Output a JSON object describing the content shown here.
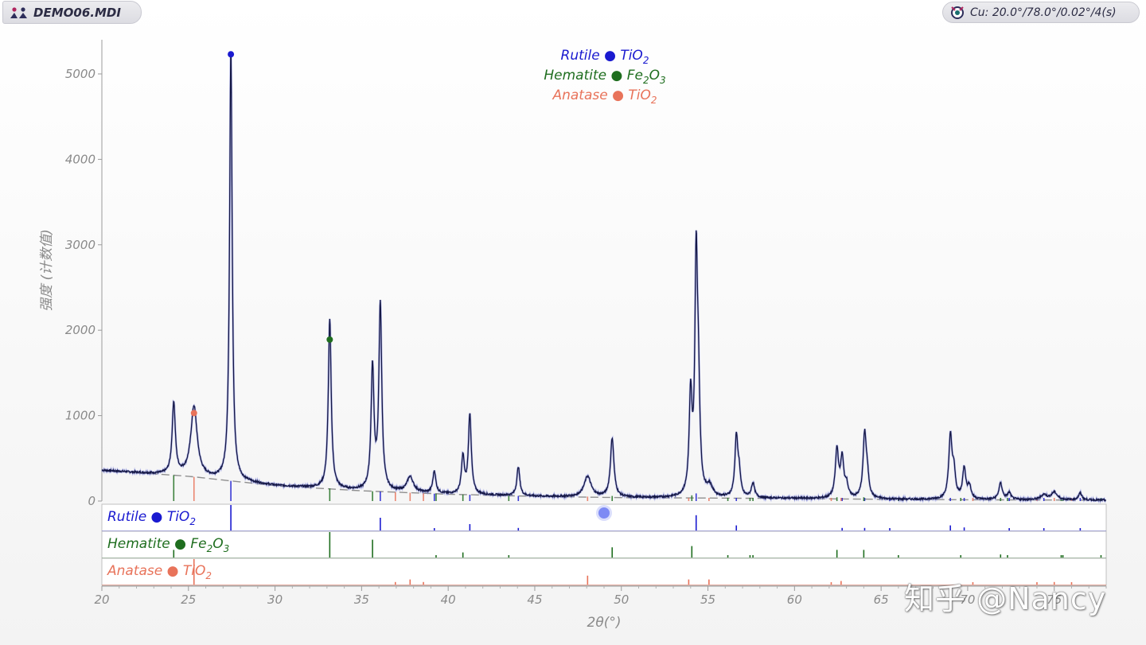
{
  "header": {
    "file_name": "DEMO06.MDI",
    "conditions": "Cu: 20.0°/78.0°/0.02°/4(s)"
  },
  "watermark": "知乎 @Nancy",
  "colors": {
    "rutile": "#1a1ad0",
    "hematite": "#1f6e1f",
    "anatase": "#e8735a",
    "pattern": "#151845",
    "axis_text": "#8a8a8a"
  },
  "chart_data": {
    "type": "line",
    "xlabel": "2θ(°)",
    "ylabel": "强度 (计数值)",
    "xlim": [
      20,
      78
    ],
    "ylim": [
      0,
      5400
    ],
    "x_ticks": [
      20,
      25,
      30,
      35,
      40,
      45,
      50,
      55,
      60,
      65,
      70,
      75
    ],
    "y_ticks": [
      0,
      1000,
      2000,
      3000,
      4000,
      5000
    ],
    "grid": false,
    "legend": {
      "placement": "top-center",
      "entries": [
        {
          "mineral": "Rutile",
          "formula": "TiO",
          "sub": "2",
          "color": "#1a1ad0"
        },
        {
          "mineral": "Hematite",
          "formula_a": "Fe",
          "sub_a": "2",
          "formula_b": "O",
          "sub_b": "3",
          "color": "#1f6e1f"
        },
        {
          "mineral": "Anatase",
          "formula": "TiO",
          "sub": "2",
          "color": "#e8735a"
        }
      ]
    },
    "background": {
      "x": [
        20,
        25,
        30,
        35,
        40,
        45,
        50,
        55,
        60,
        65,
        70,
        78
      ],
      "y": [
        360,
        290,
        180,
        120,
        80,
        55,
        40,
        35,
        30,
        20,
        15,
        10
      ]
    },
    "peaks": [
      {
        "x": 24.15,
        "h": 840,
        "w": 0.11
      },
      {
        "x": 25.32,
        "h": 820,
        "w": 0.22
      },
      {
        "x": 27.45,
        "h": 5050,
        "w": 0.09
      },
      {
        "x": 33.16,
        "h": 1980,
        "w": 0.1
      },
      {
        "x": 35.63,
        "h": 1430,
        "w": 0.1
      },
      {
        "x": 36.08,
        "h": 2170,
        "w": 0.1
      },
      {
        "x": 37.8,
        "h": 180,
        "w": 0.22
      },
      {
        "x": 39.2,
        "h": 260,
        "w": 0.1
      },
      {
        "x": 40.85,
        "h": 430,
        "w": 0.1
      },
      {
        "x": 41.25,
        "h": 930,
        "w": 0.1
      },
      {
        "x": 44.05,
        "h": 340,
        "w": 0.1
      },
      {
        "x": 48.05,
        "h": 240,
        "w": 0.24
      },
      {
        "x": 49.47,
        "h": 690,
        "w": 0.12
      },
      {
        "x": 54.0,
        "h": 1140,
        "w": 0.1
      },
      {
        "x": 54.32,
        "h": 2630,
        "w": 0.09
      },
      {
        "x": 54.45,
        "h": 1080,
        "w": 0.1
      },
      {
        "x": 55.1,
        "h": 120,
        "w": 0.2
      },
      {
        "x": 56.64,
        "h": 690,
        "w": 0.1
      },
      {
        "x": 56.8,
        "h": 260,
        "w": 0.1
      },
      {
        "x": 57.6,
        "h": 170,
        "w": 0.11
      },
      {
        "x": 62.45,
        "h": 560,
        "w": 0.11
      },
      {
        "x": 62.75,
        "h": 450,
        "w": 0.11
      },
      {
        "x": 63.0,
        "h": 150,
        "w": 0.11
      },
      {
        "x": 64.05,
        "h": 730,
        "w": 0.11
      },
      {
        "x": 64.2,
        "h": 220,
        "w": 0.11
      },
      {
        "x": 69.0,
        "h": 720,
        "w": 0.11
      },
      {
        "x": 69.2,
        "h": 300,
        "w": 0.11
      },
      {
        "x": 69.8,
        "h": 360,
        "w": 0.11
      },
      {
        "x": 70.1,
        "h": 150,
        "w": 0.11
      },
      {
        "x": 71.9,
        "h": 190,
        "w": 0.12
      },
      {
        "x": 72.4,
        "h": 80,
        "w": 0.12
      },
      {
        "x": 74.4,
        "h": 60,
        "w": 0.2
      },
      {
        "x": 75.0,
        "h": 90,
        "w": 0.2
      },
      {
        "x": 76.5,
        "h": 80,
        "w": 0.12
      }
    ],
    "marked_peaks": [
      {
        "phase": "Rutile",
        "x": 27.45,
        "y": 5230
      },
      {
        "phase": "Hematite",
        "x": 33.16,
        "y": 1890
      },
      {
        "phase": "Anatase",
        "x": 25.32,
        "y": 1030
      }
    ],
    "phases": [
      {
        "name": "Rutile",
        "formula": "TiO",
        "sub": "2",
        "color": "#1a1ad0",
        "x": [
          27.45,
          36.08,
          39.2,
          41.25,
          44.05,
          54.32,
          56.64,
          62.75,
          64.05,
          65.5,
          69.0,
          69.8,
          72.4,
          74.4,
          76.5
        ],
        "rel": [
          100,
          50,
          8,
          25,
          10,
          60,
          20,
          10,
          10,
          2,
          20,
          12,
          2,
          1,
          6
        ]
      },
      {
        "name": "Hematite",
        "formula_a": "Fe",
        "sub_a": "2",
        "formula_b": "O",
        "sub_b": "3",
        "color": "#1f6e1f",
        "x": [
          24.15,
          33.16,
          35.63,
          39.3,
          40.85,
          43.5,
          49.47,
          54.07,
          56.15,
          57.43,
          57.6,
          62.45,
          64.0,
          66.0,
          69.6,
          71.9,
          72.3,
          75.4,
          75.5,
          77.7
        ],
        "rel": [
          30,
          100,
          70,
          3,
          20,
          3,
          40,
          45,
          3,
          5,
          8,
          30,
          30,
          2,
          3,
          12,
          5,
          3,
          7,
          4
        ]
      },
      {
        "name": "Anatase",
        "formula": "TiO",
        "sub": "2",
        "color": "#e8735a",
        "x": [
          25.32,
          36.95,
          37.8,
          38.57,
          48.05,
          53.89,
          55.06,
          62.12,
          62.69,
          70.3,
          74.0,
          75.0,
          76.0
        ],
        "rel": [
          100,
          10,
          20,
          10,
          35,
          20,
          20,
          4,
          14,
          6,
          2,
          10,
          4
        ]
      }
    ]
  }
}
